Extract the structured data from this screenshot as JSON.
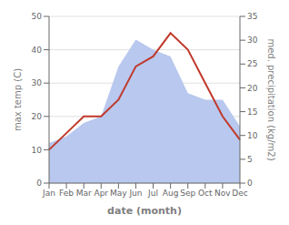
{
  "chart_data": {
    "type": "line",
    "xlabel": "date (month)",
    "ylabel": "max temp (C)",
    "y2label": "med. precipitation (kg/m2)",
    "categories": [
      "Jan",
      "Feb",
      "Mar",
      "Apr",
      "May",
      "Jun",
      "Jul",
      "Aug",
      "Sep",
      "Oct",
      "Nov",
      "Dec"
    ],
    "series": [
      {
        "type": "area",
        "color": "#b8c8ee",
        "values": [
          12,
          14,
          18,
          20,
          35,
          43,
          40,
          38,
          27,
          25,
          25,
          17
        ]
      },
      {
        "type": "line",
        "color": "#c0392b",
        "values": [
          10,
          15,
          20,
          20,
          25,
          35,
          38,
          45,
          40,
          30,
          20,
          13
        ]
      }
    ],
    "ylim": [
      0,
      50
    ],
    "yticks": [
      0,
      10,
      20,
      30,
      40,
      50
    ],
    "y2lim": [
      0,
      35
    ],
    "y2ticks": [
      0,
      5,
      10,
      15,
      20,
      25,
      30,
      35
    ],
    "grid": "y"
  }
}
